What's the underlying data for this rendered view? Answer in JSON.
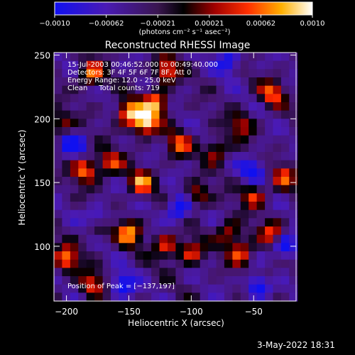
{
  "colorbar": {
    "tick_labels": [
      "−0.0010",
      "−0.00062",
      "−0.00021",
      "0.00021",
      "0.00062",
      "0.0010"
    ],
    "unit_label": "(photons cm⁻² s⁻¹ asec⁻²)",
    "range": [
      -0.001,
      0.001
    ]
  },
  "chart_data": {
    "type": "heatmap",
    "title": "Reconstructed RHESSI Image",
    "xlabel": "Heliocentric X (arcsec)",
    "ylabel": "Heliocentric Y (arcsec)",
    "xlim": [
      -210,
      -16
    ],
    "ylim": [
      57,
      252
    ],
    "xticks": [
      -200,
      -150,
      -100,
      -50
    ],
    "yticks": [
      100,
      150,
      200,
      250
    ],
    "x_tick_labels": [
      "−200",
      "−150",
      "−100",
      "−50"
    ],
    "y_tick_labels": [
      "100",
      "150",
      "200",
      "250"
    ],
    "colormap": "blue-purple-black-red-yellow-white",
    "peak": [
      -137,
      197
    ],
    "bright_blobs": [
      {
        "x": -137,
        "y": 197,
        "v": 1.0
      },
      {
        "x": -150,
        "y": 205,
        "v": 0.85
      },
      {
        "x": -128,
        "y": 212,
        "v": 0.8
      },
      {
        "x": -180,
        "y": 235,
        "v": 0.7
      },
      {
        "x": -120,
        "y": 238,
        "v": 0.7
      },
      {
        "x": -35,
        "y": 220,
        "v": 0.65
      },
      {
        "x": -185,
        "y": 160,
        "v": 0.75
      },
      {
        "x": -165,
        "y": 165,
        "v": 0.6
      },
      {
        "x": -140,
        "y": 150,
        "v": 0.7
      },
      {
        "x": -110,
        "y": 180,
        "v": 0.6
      },
      {
        "x": -80,
        "y": 175,
        "v": 0.55
      },
      {
        "x": -60,
        "y": 195,
        "v": 0.5
      },
      {
        "x": -95,
        "y": 140,
        "v": 0.55
      },
      {
        "x": -50,
        "y": 140,
        "v": 0.6
      },
      {
        "x": -25,
        "y": 155,
        "v": 0.55
      },
      {
        "x": -150,
        "y": 110,
        "v": 0.75
      },
      {
        "x": -175,
        "y": 115,
        "v": 0.7
      },
      {
        "x": -200,
        "y": 90,
        "v": 0.75
      },
      {
        "x": -180,
        "y": 70,
        "v": 0.6
      },
      {
        "x": -120,
        "y": 100,
        "v": 0.6
      },
      {
        "x": -100,
        "y": 95,
        "v": 0.6
      },
      {
        "x": -60,
        "y": 95,
        "v": 0.65
      },
      {
        "x": -70,
        "y": 110,
        "v": 0.55
      },
      {
        "x": -35,
        "y": 110,
        "v": 0.6
      },
      {
        "x": -40,
        "y": 75,
        "v": 0.45
      },
      {
        "x": -205,
        "y": 195,
        "v": 0.5
      }
    ],
    "dark_blobs": [
      {
        "x": -175,
        "y": 120,
        "v": -0.8
      },
      {
        "x": -110,
        "y": 130,
        "v": -0.7
      },
      {
        "x": -45,
        "y": 70,
        "v": -0.9
      },
      {
        "x": -50,
        "y": 160,
        "v": -0.6
      },
      {
        "x": -70,
        "y": 245,
        "v": -0.55
      },
      {
        "x": -155,
        "y": 70,
        "v": -0.6
      },
      {
        "x": -195,
        "y": 180,
        "v": -0.6
      },
      {
        "x": -25,
        "y": 100,
        "v": -0.7
      }
    ]
  },
  "annotations": {
    "time_range": "15-Jul-2003 00:46:52.000 to 00:49:40.000",
    "detectors": "Detectors: 3F 4F 5F 6F 7F 8F, Att 0",
    "energy": "Energy Range: 12.0 - 25.0 keV",
    "method": "Clean     Total counts: 719",
    "peak_label": "Position of Peak = [−137,197]"
  },
  "date": "3-May-2022 18:31"
}
